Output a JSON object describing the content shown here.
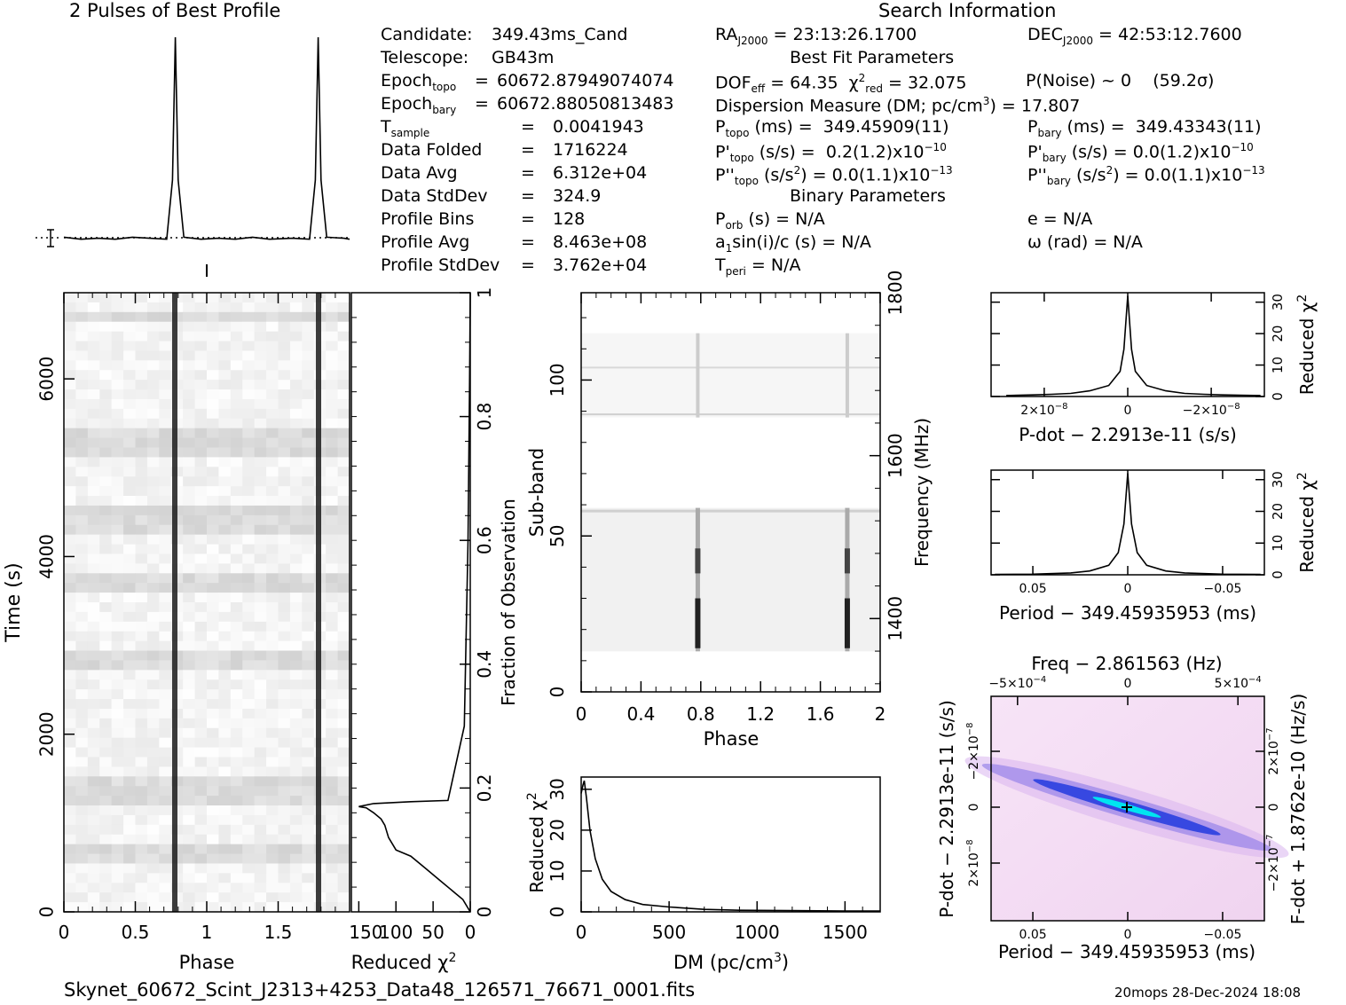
{
  "profile_title": "2 Pulses of Best Profile",
  "search_title": "Search Information",
  "info_left": [
    {
      "label": "Candidate:",
      "value": "349.43ms_Cand"
    },
    {
      "label": "Telescope:",
      "value": "GB43m"
    },
    {
      "label": "Epoch",
      "sub": "topo",
      "eq": "=",
      "value": "60672.87949074074"
    },
    {
      "label": "Epoch",
      "sub": "bary",
      "eq": "=",
      "value": "60672.88050813483"
    },
    {
      "label": "T",
      "sub": "sample",
      "eq": "=",
      "value": "0.0041943"
    },
    {
      "label": "Data Folded",
      "eq": "=",
      "value": "1716224"
    },
    {
      "label": "Data Avg",
      "eq": "=",
      "value": "6.312e+04"
    },
    {
      "label": "Data StdDev",
      "eq": "=",
      "value": "324.9"
    },
    {
      "label": "Profile Bins",
      "eq": "=",
      "value": "128"
    },
    {
      "label": "Profile Avg",
      "eq": "=",
      "value": "8.463e+08"
    },
    {
      "label": "Profile StdDev",
      "eq": "=",
      "value": "3.762e+04"
    }
  ],
  "search_info": {
    "ra": "23:13:26.1700",
    "dec": "42:53:12.7600",
    "best_fit_title": "Best Fit Parameters",
    "dof_eff": "64.35",
    "chi2_red": "32.075",
    "p_noise": "P(Noise) ~ 0",
    "sigma": "(59.2σ)",
    "dm_label": "Dispersion Measure (DM; pc/cm",
    "dm_value": ") = 17.807",
    "p_topo": "349.45909(11)",
    "p_bary": "349.43343(11)",
    "pd_topo": "0.2(1.2)x10",
    "pd_topo_exp": "−10",
    "pd_bary": "0.0(1.2)x10",
    "pd_bary_exp": "−10",
    "pdd_topo": "0.0(1.1)x10",
    "pdd_topo_exp": "−13",
    "pdd_bary": "0.0(1.1)x10",
    "pdd_bary_exp": "−13",
    "binary_title": "Binary Parameters",
    "p_orb": "N/A",
    "asini": "N/A",
    "t_peri": "N/A",
    "e": "e = N/A",
    "omega": "ω (rad) = N/A"
  },
  "footer_left": "Skynet_60672_Scint_J2313+4253_Data48_126571_76671_0001.fits",
  "footer_right": "20mops 28-Dec-2024 18:08",
  "time_phase": {
    "ylabel": "Time (s)",
    "xlabel": "Phase",
    "xticks": [
      "0",
      "0.5",
      "1",
      "1.5"
    ],
    "yticks": [
      "0",
      "2000",
      "4000",
      "6000"
    ]
  },
  "chi_time": {
    "xlabel": "Reduced χ",
    "xticks": [
      "150",
      "100",
      "50",
      "0"
    ],
    "right_label": "Fraction of Observation",
    "rticks": [
      "0",
      "0.2",
      "0.4",
      "0.6",
      "0.8",
      "1"
    ]
  },
  "subband": {
    "ylabel": "Sub-band",
    "xlabel": "Phase",
    "xticks": [
      "0",
      "0.4",
      "0.8",
      "1.2",
      "1.6",
      "2"
    ],
    "yticks": [
      "0",
      "50",
      "100"
    ],
    "right_label": "Frequency (MHz)",
    "rticks": [
      "1400",
      "1600",
      "1800"
    ]
  },
  "dm_plot": {
    "ylabel": "Reduced χ",
    "xlabel": "DM (pc/cm",
    "xlabel_close": ")",
    "xticks": [
      "0",
      "500",
      "1000",
      "1500"
    ],
    "yticks": [
      "0",
      "10",
      "20",
      "30"
    ]
  },
  "pdot_plot": {
    "xlabel": "P-dot − 2.2913e-11 (s/s)",
    "right_label": "Reduced χ",
    "xticks": [
      "2×10",
      "0",
      "−2×10"
    ],
    "xticks_exp": "−8",
    "rticks": [
      "0",
      "10",
      "20",
      "30"
    ]
  },
  "period_plot": {
    "xlabel": "Period − 349.45935953 (ms)",
    "right_label": "Reduced χ",
    "xticks": [
      "0.05",
      "0",
      "−0.05"
    ],
    "rticks": [
      "0",
      "10",
      "20",
      "30"
    ]
  },
  "ppdot_plot": {
    "title": "Freq − 2.861563 (Hz)",
    "xlabel": "Period − 349.45935953 (ms)",
    "ylabel": "P-dot − 2.2913e-11 (s/s)",
    "right_label": "F-dot + 1.8762e-10 (Hz/s)",
    "xticks": [
      "0.05",
      "0",
      "−0.05"
    ],
    "top_ticks": [
      "−5×10",
      "0",
      "5×10"
    ],
    "top_exp": "−4",
    "yticks": [
      "2×10",
      "0",
      "−2×10"
    ],
    "y_exp": "−8",
    "right_ticks": [
      "−2×10",
      "0",
      "2×10"
    ],
    "r_exp": "−7"
  },
  "chart_data": [
    {
      "type": "line",
      "name": "profile",
      "x": [
        0,
        0.12,
        0.24,
        0.36,
        0.48,
        0.6,
        0.72,
        0.76,
        0.78,
        0.8,
        0.84,
        0.96,
        1.08,
        1.2,
        1.32,
        1.44,
        1.6,
        1.72,
        1.76,
        1.78,
        1.8,
        1.84,
        1.96,
        2.0
      ],
      "values": [
        0.02,
        0.01,
        0.015,
        0.01,
        0.02,
        0.015,
        0.01,
        0.3,
        1.0,
        0.3,
        0.02,
        0.01,
        0.015,
        0.01,
        0.02,
        0.01,
        0.015,
        0.01,
        0.3,
        1.0,
        0.3,
        0.02,
        0.015,
        0.01
      ]
    },
    {
      "type": "line",
      "name": "reduced chi2 vs fraction of observation",
      "x": [
        0,
        10,
        20,
        40,
        60,
        80,
        100,
        110,
        115,
        120,
        130,
        140,
        150,
        130,
        80,
        30,
        8,
        3,
        1,
        0
      ],
      "y": [
        0,
        0.02,
        0.03,
        0.05,
        0.07,
        0.09,
        0.1,
        0.12,
        0.14,
        0.15,
        0.16,
        0.168,
        0.17,
        0.175,
        0.178,
        0.18,
        0.3,
        0.6,
        0.85,
        1.0
      ]
    },
    {
      "type": "line",
      "name": "reduced chi2 vs DM",
      "x": [
        0,
        10,
        17.8,
        30,
        50,
        80,
        120,
        170,
        250,
        350,
        500,
        700,
        900,
        1200,
        1500,
        1700
      ],
      "values": [
        29,
        31,
        32.1,
        28,
        20,
        13,
        8,
        5,
        3,
        1.8,
        1.2,
        0.6,
        0.4,
        0.3,
        0.2,
        0.2
      ],
      "xlim": [
        0,
        1700
      ],
      "ylim": [
        0,
        33
      ]
    },
    {
      "type": "line",
      "name": "reduced chi2 vs P-dot",
      "x": [
        3.2e-08,
        2.5e-08,
        2e-08,
        1.5e-08,
        1e-08,
        5e-09,
        2e-09,
        1e-09,
        0,
        -1e-09,
        -2e-09,
        -5e-09,
        -1e-08,
        -1.5e-08,
        -2e-08,
        -2.5e-08,
        -3.5e-08
      ],
      "values": [
        0.3,
        0.5,
        0.7,
        1.0,
        1.8,
        3.5,
        8,
        15,
        32,
        15,
        8,
        3.5,
        1.8,
        1.0,
        0.7,
        0.5,
        0.3
      ],
      "ylim": [
        0,
        33
      ]
    },
    {
      "type": "line",
      "name": "reduced chi2 vs period",
      "x": [
        0.07,
        0.05,
        0.03,
        0.02,
        0.01,
        0.005,
        0.002,
        0,
        -0.002,
        -0.005,
        -0.01,
        -0.02,
        -0.03,
        -0.05,
        -0.07
      ],
      "values": [
        0.1,
        0.2,
        0.6,
        1.2,
        3,
        7,
        16,
        32,
        16,
        7,
        3,
        1.2,
        0.6,
        0.2,
        0.1
      ],
      "ylim": [
        0,
        33
      ]
    }
  ],
  "colors": {
    "axis": "#000000",
    "ppdot_bg": "#f4dcf4",
    "ppdot_band": "#2840e0",
    "ppdot_peak": "#00e0f0"
  }
}
